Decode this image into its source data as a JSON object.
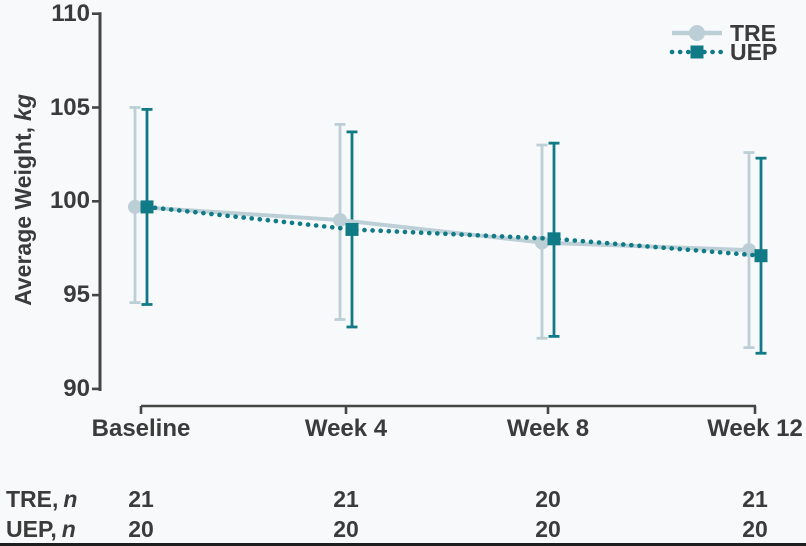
{
  "colors": {
    "background": "#f7f9fa",
    "axis": "#454545",
    "text": "#3b3b3b",
    "tre": "#bccfd6",
    "uep": "#107b87",
    "bottom_rule": "#1e1e1e"
  },
  "chart_data": {
    "type": "line",
    "title": "",
    "xlabel": "",
    "ylabel": "Average Weight, kg",
    "ylabel_main": "Average Weight,",
    "ylabel_italic": "kg",
    "ylim": [
      90,
      110
    ],
    "yticks": [
      "110",
      "105",
      "100",
      "95",
      "90"
    ],
    "ytick_values": [
      110,
      105,
      100,
      95,
      90
    ],
    "categories": [
      "Baseline",
      "Week 4",
      "Week 8",
      "Week 12"
    ],
    "grid": false,
    "legend_position": "top-right",
    "series": [
      {
        "name": "TRE",
        "color": "#bccfd6",
        "marker": "circle",
        "line_style": "solid",
        "values": [
          99.7,
          99.0,
          97.8,
          97.4
        ],
        "err_low": [
          94.6,
          93.7,
          92.7,
          92.2
        ],
        "err_high": [
          105.0,
          104.1,
          103.0,
          102.6
        ]
      },
      {
        "name": "UEP",
        "color": "#107b87",
        "marker": "square",
        "line_style": "dotted",
        "values": [
          99.7,
          98.5,
          98.0,
          97.1
        ],
        "err_low": [
          94.5,
          93.3,
          92.8,
          91.9
        ],
        "err_high": [
          104.9,
          103.7,
          103.1,
          102.3
        ]
      }
    ]
  },
  "table": {
    "rows": [
      {
        "label": "TRE,",
        "label_italic": "n",
        "values": [
          "21",
          "21",
          "20",
          "21"
        ]
      },
      {
        "label": "UEP,",
        "label_italic": "n",
        "values": [
          "20",
          "20",
          "20",
          "20"
        ]
      }
    ]
  }
}
